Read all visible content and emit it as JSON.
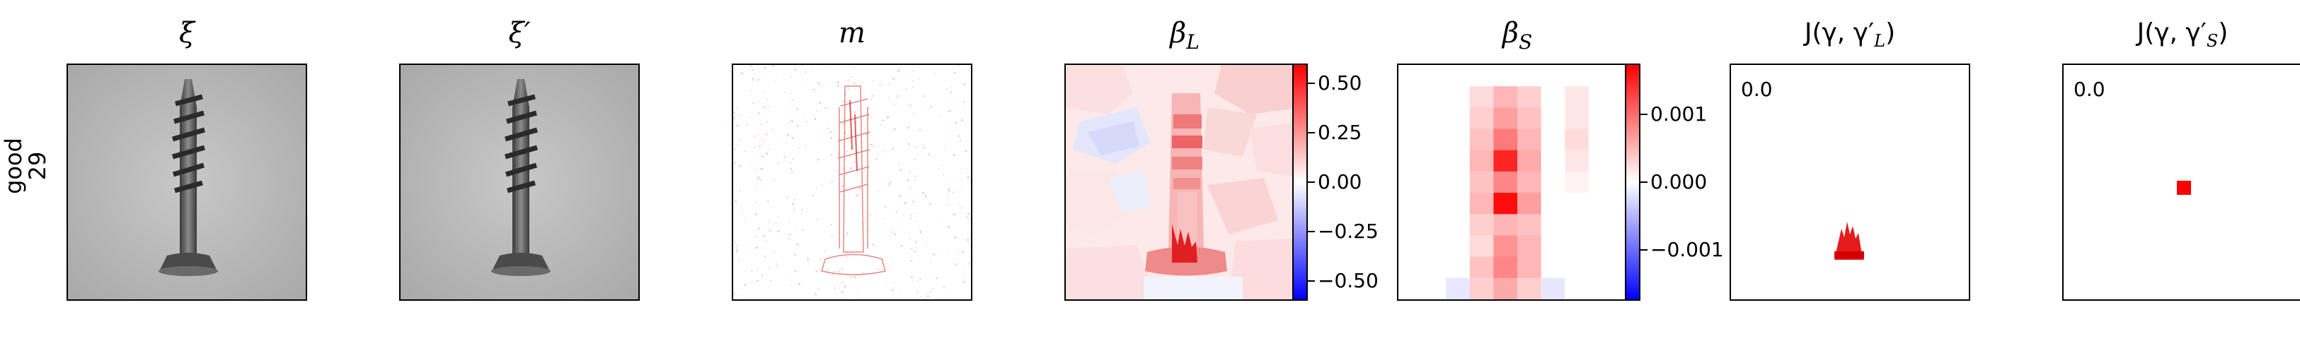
{
  "row_label": [
    "good",
    "29"
  ],
  "panels": [
    {
      "key": "xi",
      "title_main": "ξ",
      "title_sub": ""
    },
    {
      "key": "xi_prime",
      "title_main": "ξ′",
      "title_sub": ""
    },
    {
      "key": "m",
      "title_main": "m",
      "title_sub": ""
    },
    {
      "key": "beta_L",
      "title_main": "β",
      "title_sub": "L"
    },
    {
      "key": "beta_S",
      "title_main": "β",
      "title_sub": "S"
    },
    {
      "key": "J_L",
      "title_main": "J(γ, γ′",
      "title_sub": "L",
      "title_end": ")"
    },
    {
      "key": "J_S",
      "title_main": "J(γ, γ′",
      "title_sub": "S",
      "title_end": ")"
    }
  ],
  "colorbar_L": {
    "ticks": [
      "0.50",
      "0.25",
      "0.00",
      "−0.25",
      "−0.50"
    ],
    "tick_values": [
      0.5,
      0.25,
      0.0,
      -0.25,
      -0.5
    ],
    "range": [
      -0.6,
      0.6
    ]
  },
  "colorbar_S": {
    "ticks": [
      "0.001",
      "0.000",
      "−0.001"
    ],
    "tick_values": [
      0.001,
      0.0,
      -0.001
    ],
    "range": [
      -0.00175,
      0.00175
    ]
  },
  "J_L_value": "0.0",
  "J_S_value": "0.0",
  "colors": {
    "positive": "#ff0000",
    "negative": "#0000ff",
    "neutral": "#ffffff",
    "screw_bg": "#bdbdbd"
  },
  "chart_data": {
    "type": "heatmap",
    "colormap": "bwr",
    "beta_S_grid": [
      [
        0,
        0,
        0,
        0,
        0,
        0,
        0,
        0,
        0,
        0
      ],
      [
        0,
        0,
        0,
        0.15,
        0.3,
        0.2,
        0,
        0.1,
        0,
        0
      ],
      [
        0,
        0,
        0,
        0.2,
        0.4,
        0.25,
        0,
        0.1,
        0,
        0
      ],
      [
        0,
        0,
        0,
        0.25,
        0.55,
        0.3,
        0,
        0.15,
        0,
        0
      ],
      [
        0,
        0,
        0,
        0.3,
        0.9,
        0.35,
        0,
        0.1,
        0,
        0
      ],
      [
        0,
        0,
        0,
        0.25,
        0.5,
        0.3,
        0,
        0.05,
        0,
        0
      ],
      [
        0,
        0,
        0,
        0.3,
        1.0,
        0.4,
        0,
        0,
        0,
        0
      ],
      [
        0,
        0,
        0,
        0.2,
        0.3,
        0.25,
        0,
        0,
        0,
        0
      ],
      [
        0,
        0,
        0,
        0.15,
        0.45,
        0.3,
        0,
        0,
        0,
        0
      ],
      [
        0,
        0,
        0,
        0.25,
        0.5,
        0.3,
        0,
        0,
        0,
        0
      ],
      [
        0,
        0,
        -0.1,
        0.2,
        0.35,
        0.2,
        -0.1,
        0,
        0,
        0
      ]
    ]
  }
}
